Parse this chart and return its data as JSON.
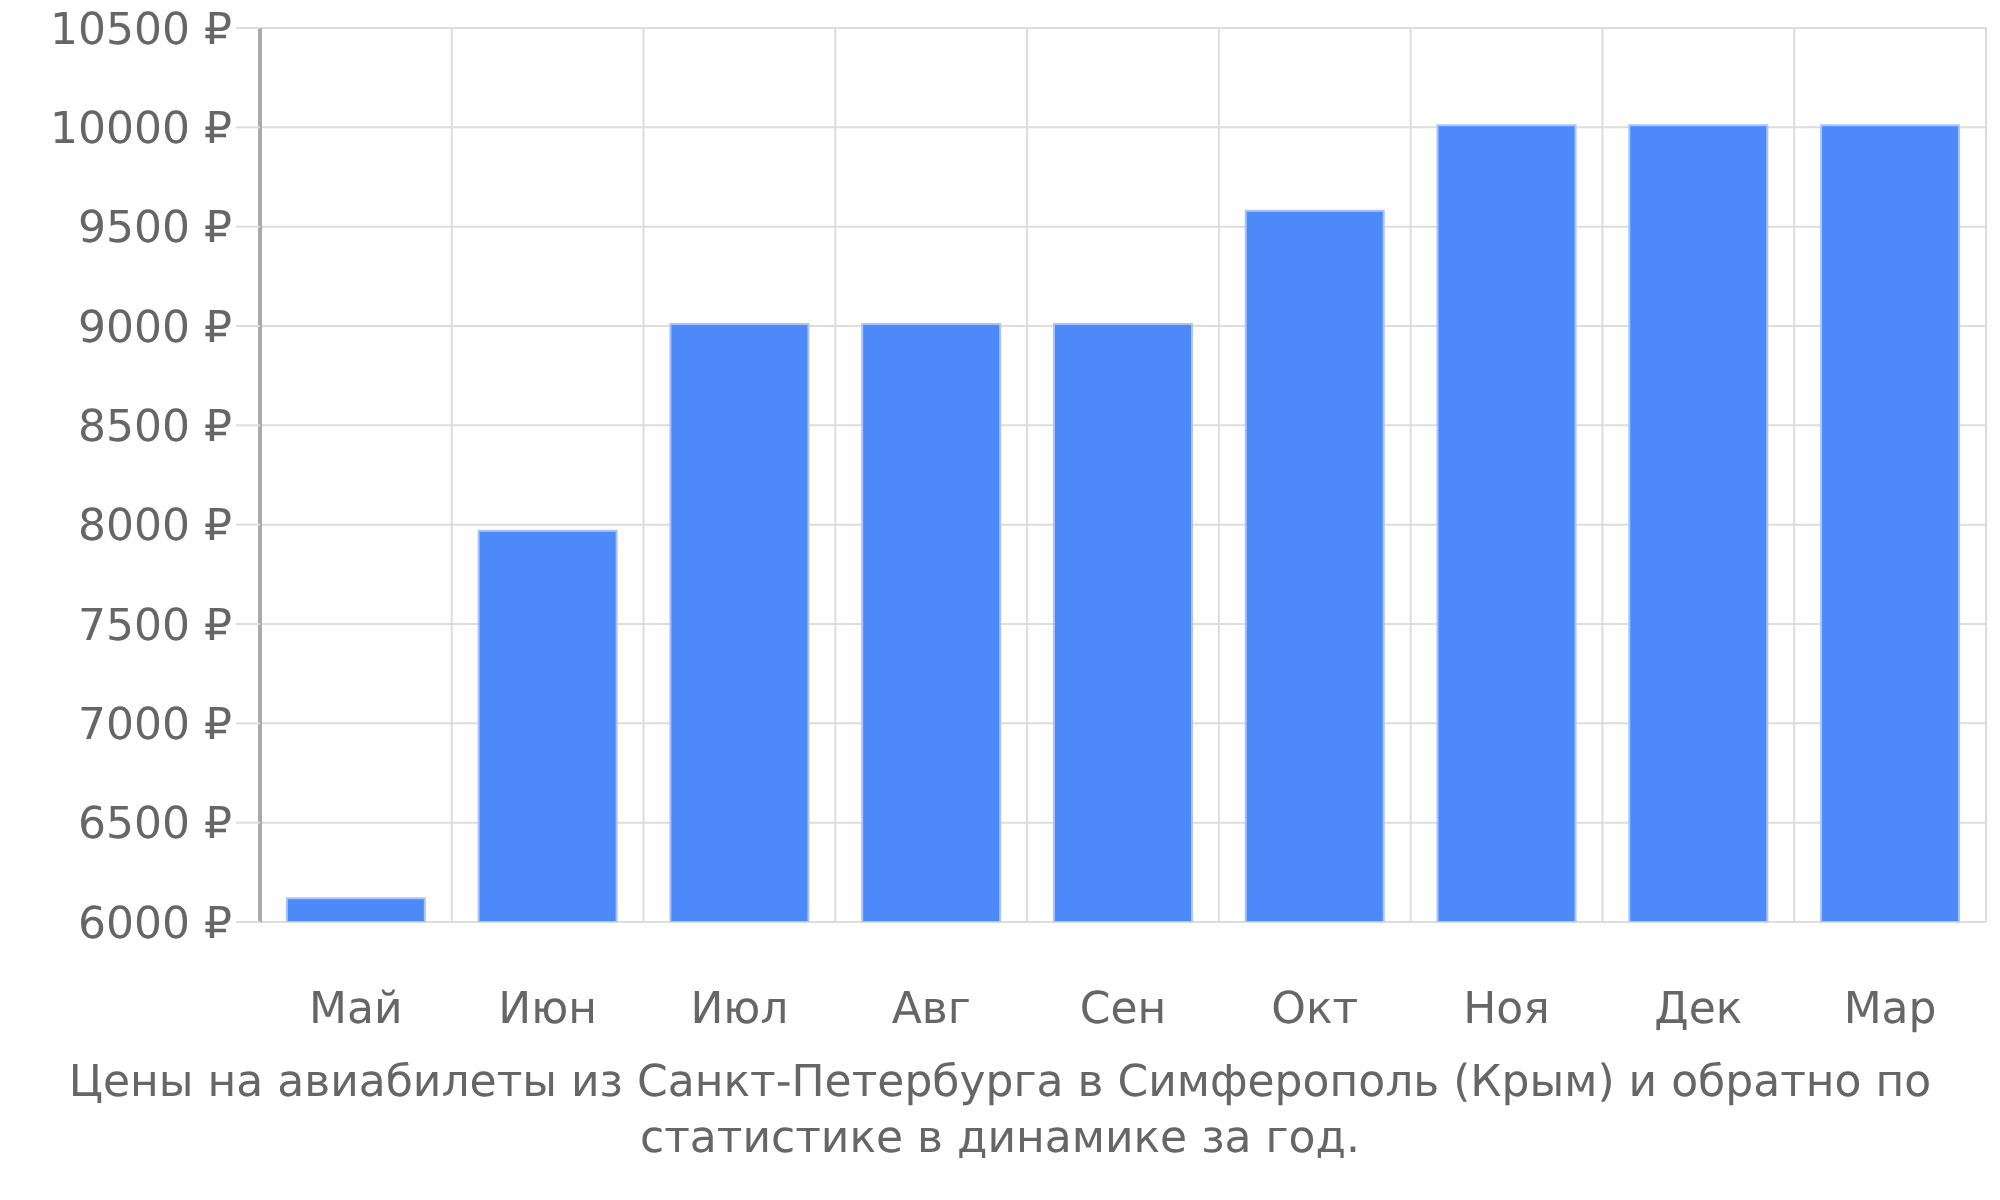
{
  "chart_data": {
    "type": "bar",
    "title": "Цены на авиабилеты из Санкт-Петербурга в Симферополь (Крым) и обратно по статистике в динамике за год.",
    "categories": [
      "Май",
      "Июн",
      "Июл",
      "Авг",
      "Сен",
      "Окт",
      "Ноя",
      "Дек",
      "Мар"
    ],
    "values": [
      6120,
      7970,
      9010,
      9010,
      9010,
      9580,
      10010,
      10010,
      10010
    ],
    "color": "#4d89f9",
    "ylim": [
      6000,
      10500
    ],
    "yticks": [
      {
        "value": 6000,
        "label": "6000 ₽"
      },
      {
        "value": 6500,
        "label": "6500 ₽"
      },
      {
        "value": 7000,
        "label": "7000 ₽"
      },
      {
        "value": 7500,
        "label": "7500 ₽"
      },
      {
        "value": 8000,
        "label": "8000 ₽"
      },
      {
        "value": 8500,
        "label": "8500 ₽"
      },
      {
        "value": 9000,
        "label": "9000 ₽"
      },
      {
        "value": 9500,
        "label": "9500 ₽"
      },
      {
        "value": 10000,
        "label": "10000 ₽"
      },
      {
        "value": 10500,
        "label": "10500 ₽"
      }
    ],
    "grid": true
  }
}
